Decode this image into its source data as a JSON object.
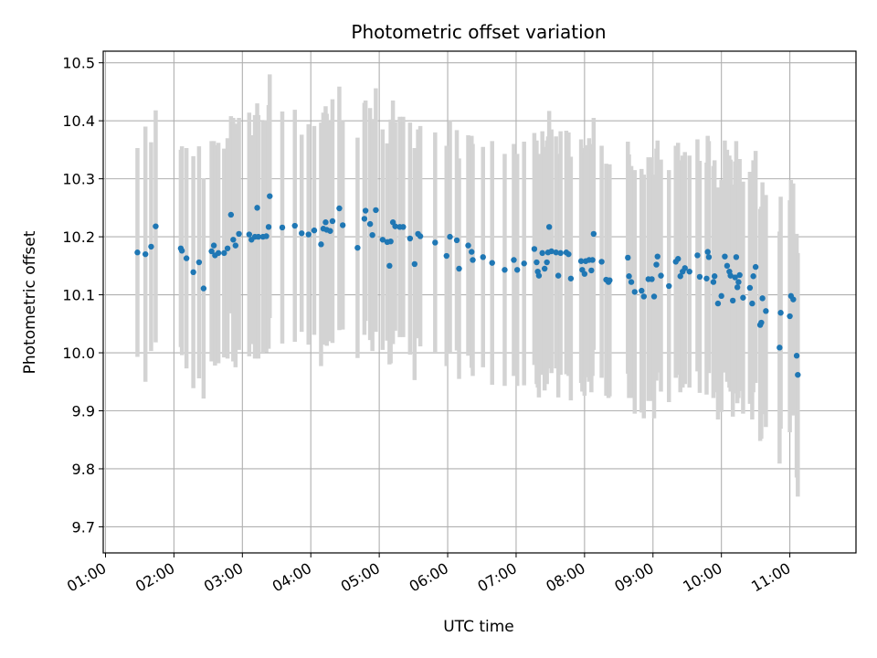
{
  "chart_data": {
    "type": "scatter",
    "title": "Photometric offset variation",
    "xlabel": "UTC time",
    "ylabel": "Photometric offset",
    "x_ticks": [
      "01:00",
      "02:00",
      "03:00",
      "04:00",
      "05:00",
      "06:00",
      "07:00",
      "08:00",
      "09:00",
      "10:00",
      "11:00"
    ],
    "y_ticks": [
      "9.7",
      "9.8",
      "9.9",
      "10.0",
      "10.1",
      "10.2",
      "10.3",
      "10.4",
      "10.5"
    ],
    "xlim": [
      "00:58",
      "11:58"
    ],
    "ylim": [
      9.655,
      10.52
    ],
    "grid": true,
    "marker_color": "#1f77b4",
    "errorbar_color": "#d3d3d3",
    "series": [
      {
        "values": [
          [
            "01:28",
            10.173,
            0.18
          ],
          [
            "01:35",
            10.17,
            0.22
          ],
          [
            "01:40",
            10.183,
            0.18
          ],
          [
            "01:44",
            10.218,
            0.2
          ],
          [
            "02:06",
            10.18,
            0.17
          ],
          [
            "02:07",
            10.176,
            0.18
          ],
          [
            "02:11",
            10.163,
            0.19
          ],
          [
            "02:17",
            10.139,
            0.2
          ],
          [
            "02:22",
            10.156,
            0.2
          ],
          [
            "02:26",
            10.111,
            0.19
          ],
          [
            "02:33",
            10.175,
            0.19
          ],
          [
            "02:35",
            10.185,
            0.18
          ],
          [
            "02:36",
            10.168,
            0.19
          ],
          [
            "02:39",
            10.172,
            0.19
          ],
          [
            "02:44",
            10.172,
            0.18
          ],
          [
            "02:47",
            10.18,
            0.19
          ],
          [
            "02:50",
            10.238,
            0.17
          ],
          [
            "02:52",
            10.195,
            0.21
          ],
          [
            "02:54",
            10.185,
            0.21
          ],
          [
            "02:57",
            10.205,
            0.2
          ],
          [
            "03:06",
            10.204,
            0.21
          ],
          [
            "03:08",
            10.195,
            0.18
          ],
          [
            "03:11",
            10.2,
            0.21
          ],
          [
            "03:13",
            10.25,
            0.18
          ],
          [
            "03:14",
            10.2,
            0.21
          ],
          [
            "03:18",
            10.2,
            0.2
          ],
          [
            "03:21",
            10.201,
            0.2
          ],
          [
            "03:23",
            10.217,
            0.21
          ],
          [
            "03:24",
            10.27,
            0.21
          ],
          [
            "03:35",
            10.216,
            0.2
          ],
          [
            "03:46",
            10.219,
            0.2
          ],
          [
            "03:52",
            10.206,
            0.17
          ],
          [
            "03:58",
            10.204,
            0.19
          ],
          [
            "04:03",
            10.211,
            0.18
          ],
          [
            "04:09",
            10.187,
            0.21
          ],
          [
            "04:11",
            10.214,
            0.2
          ],
          [
            "04:13",
            10.225,
            0.2
          ],
          [
            "04:14",
            10.212,
            0.2
          ],
          [
            "04:17",
            10.21,
            0.19
          ],
          [
            "04:19",
            10.227,
            0.21
          ],
          [
            "04:25",
            10.249,
            0.21
          ],
          [
            "04:28",
            10.22,
            0.18
          ],
          [
            "04:41",
            10.181,
            0.19
          ],
          [
            "04:47",
            10.231,
            0.2
          ],
          [
            "04:48",
            10.245,
            0.19
          ],
          [
            "04:52",
            10.222,
            0.2
          ],
          [
            "04:54",
            10.203,
            0.2
          ],
          [
            "04:57",
            10.246,
            0.21
          ],
          [
            "05:03",
            10.195,
            0.19
          ],
          [
            "05:07",
            10.191,
            0.17
          ],
          [
            "05:09",
            10.15,
            0.17
          ],
          [
            "05:10",
            10.192,
            0.21
          ],
          [
            "05:12",
            10.225,
            0.21
          ],
          [
            "05:14",
            10.218,
            0.18
          ],
          [
            "05:18",
            10.217,
            0.19
          ],
          [
            "05:21",
            10.217,
            0.19
          ],
          [
            "05:27",
            10.197,
            0.2
          ],
          [
            "05:31",
            10.153,
            0.2
          ],
          [
            "05:34",
            10.205,
            0.18
          ],
          [
            "05:36",
            10.201,
            0.19
          ],
          [
            "05:49",
            10.19,
            0.19
          ],
          [
            "05:59",
            10.167,
            0.19
          ],
          [
            "06:02",
            10.2,
            0.2
          ],
          [
            "06:08",
            10.194,
            0.19
          ],
          [
            "06:10",
            10.145,
            0.19
          ],
          [
            "06:18",
            10.185,
            0.19
          ],
          [
            "06:21",
            10.174,
            0.2
          ],
          [
            "06:22",
            10.16,
            0.2
          ],
          [
            "06:31",
            10.165,
            0.19
          ],
          [
            "06:39",
            10.155,
            0.21
          ],
          [
            "06:50",
            10.143,
            0.2
          ],
          [
            "06:58",
            10.16,
            0.2
          ],
          [
            "07:01",
            10.143,
            0.2
          ],
          [
            "07:07",
            10.154,
            0.21
          ],
          [
            "07:16",
            10.179,
            0.2
          ],
          [
            "07:18",
            10.156,
            0.21
          ],
          [
            "07:19",
            10.14,
            0.2
          ],
          [
            "07:20",
            10.133,
            0.21
          ],
          [
            "07:23",
            10.172,
            0.21
          ],
          [
            "07:25",
            10.145,
            0.21
          ],
          [
            "07:27",
            10.156,
            0.21
          ],
          [
            "07:28",
            10.173,
            0.2
          ],
          [
            "07:29",
            10.217,
            0.2
          ],
          [
            "07:31",
            10.175,
            0.21
          ],
          [
            "07:35",
            10.173,
            0.2
          ],
          [
            "07:37",
            10.133,
            0.21
          ],
          [
            "07:39",
            10.172,
            0.21
          ],
          [
            "07:44",
            10.173,
            0.21
          ],
          [
            "07:46",
            10.17,
            0.21
          ],
          [
            "07:48",
            10.128,
            0.21
          ],
          [
            "07:57",
            10.158,
            0.21
          ],
          [
            "07:58",
            10.143,
            0.21
          ],
          [
            "08:00",
            10.136,
            0.21
          ],
          [
            "08:01",
            10.158,
            0.2
          ],
          [
            "08:04",
            10.16,
            0.21
          ],
          [
            "08:06",
            10.142,
            0.21
          ],
          [
            "08:07",
            10.16,
            0.2
          ],
          [
            "08:08",
            10.205,
            0.2
          ],
          [
            "08:15",
            10.157,
            0.2
          ],
          [
            "08:19",
            10.126,
            0.2
          ],
          [
            "08:21",
            10.122,
            0.2
          ],
          [
            "08:22",
            10.125,
            0.2
          ],
          [
            "08:38",
            10.164,
            0.2
          ],
          [
            "08:39",
            10.132,
            0.21
          ],
          [
            "08:41",
            10.122,
            0.2
          ],
          [
            "08:44",
            10.105,
            0.21
          ],
          [
            "08:50",
            10.107,
            0.21
          ],
          [
            "08:52",
            10.097,
            0.21
          ],
          [
            "08:56",
            10.127,
            0.21
          ],
          [
            "08:59",
            10.127,
            0.21
          ],
          [
            "09:01",
            10.097,
            0.21
          ],
          [
            "09:03",
            10.152,
            0.2
          ],
          [
            "09:04",
            10.166,
            0.2
          ],
          [
            "09:07",
            10.133,
            0.2
          ],
          [
            "09:14",
            10.115,
            0.2
          ],
          [
            "09:20",
            10.157,
            0.2
          ],
          [
            "09:22",
            10.162,
            0.2
          ],
          [
            "09:24",
            10.132,
            0.2
          ],
          [
            "09:26",
            10.14,
            0.2
          ],
          [
            "09:28",
            10.146,
            0.2
          ],
          [
            "09:32",
            10.14,
            0.2
          ],
          [
            "09:39",
            10.168,
            0.2
          ],
          [
            "09:41",
            10.131,
            0.2
          ],
          [
            "09:47",
            10.128,
            0.2
          ],
          [
            "09:48",
            10.174,
            0.2
          ],
          [
            "09:49",
            10.165,
            0.2
          ],
          [
            "09:53",
            10.122,
            0.2
          ],
          [
            "09:54",
            10.132,
            0.2
          ],
          [
            "09:57",
            10.085,
            0.2
          ],
          [
            "10:00",
            10.098,
            0.2
          ],
          [
            "10:03",
            10.166,
            0.2
          ],
          [
            "10:05",
            10.15,
            0.2
          ],
          [
            "10:07",
            10.14,
            0.2
          ],
          [
            "10:08",
            10.133,
            0.2
          ],
          [
            "10:10",
            10.09,
            0.2
          ],
          [
            "10:12",
            10.13,
            0.2
          ],
          [
            "10:13",
            10.165,
            0.2
          ],
          [
            "10:14",
            10.113,
            0.2
          ],
          [
            "10:15",
            10.122,
            0.2
          ],
          [
            "10:16",
            10.134,
            0.2
          ],
          [
            "10:19",
            10.095,
            0.2
          ],
          [
            "10:25",
            10.112,
            0.2
          ],
          [
            "10:27",
            10.085,
            0.2
          ],
          [
            "10:28",
            10.132,
            0.2
          ],
          [
            "10:30",
            10.148,
            0.2
          ],
          [
            "10:34",
            10.048,
            0.2
          ],
          [
            "10:35",
            10.052,
            0.2
          ],
          [
            "10:36",
            10.094,
            0.2
          ],
          [
            "10:39",
            10.072,
            0.2
          ],
          [
            "10:51",
            10.009,
            0.2
          ],
          [
            "10:52",
            10.069,
            0.2
          ],
          [
            "11:00",
            10.063,
            0.2
          ],
          [
            "11:01",
            10.098,
            0.2
          ],
          [
            "11:03",
            10.092,
            0.2
          ],
          [
            "11:06",
            9.995,
            0.21
          ],
          [
            "11:07",
            9.962,
            0.21
          ]
        ]
      }
    ]
  }
}
